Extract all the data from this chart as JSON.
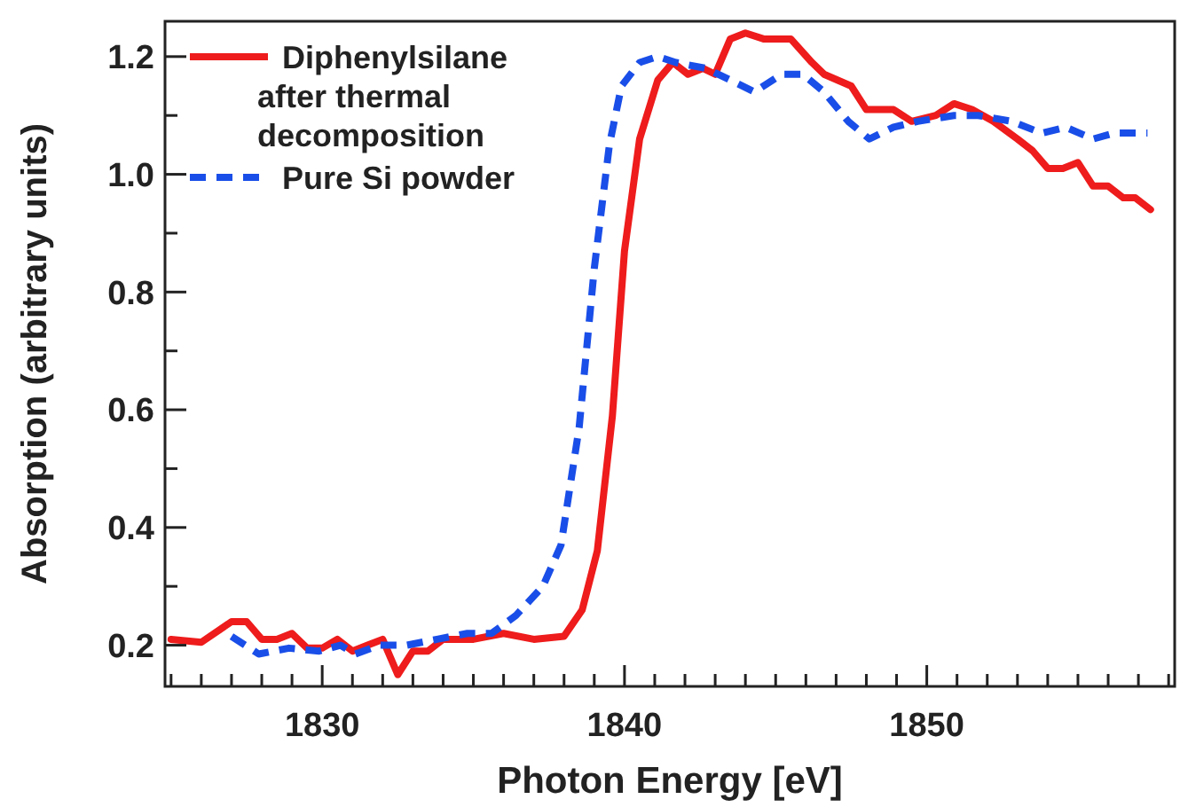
{
  "chart_data": {
    "type": "line",
    "xlabel": "Photon Energy [eV]",
    "ylabel": "Absorption (arbitrary units)",
    "xlim": [
      1824.8,
      1858.2
    ],
    "ylim": [
      0.13,
      1.26
    ],
    "xticks": [
      {
        "value": 1825,
        "label": null
      },
      {
        "value": 1826,
        "label": null
      },
      {
        "value": 1827,
        "label": null
      },
      {
        "value": 1828,
        "label": null
      },
      {
        "value": 1829,
        "label": null
      },
      1830,
      {
        "value": 1831,
        "label": null
      },
      {
        "value": 1832,
        "label": null
      },
      {
        "value": 1833,
        "label": null
      },
      {
        "value": 1834,
        "label": null
      },
      {
        "value": 1835,
        "label": null
      },
      {
        "value": 1836,
        "label": null
      },
      {
        "value": 1837,
        "label": null
      },
      {
        "value": 1838,
        "label": null
      },
      {
        "value": 1839,
        "label": null
      },
      1840,
      {
        "value": 1841,
        "label": null
      },
      {
        "value": 1842,
        "label": null
      },
      {
        "value": 1843,
        "label": null
      },
      {
        "value": 1844,
        "label": null
      },
      {
        "value": 1845,
        "label": null
      },
      {
        "value": 1846,
        "label": null
      },
      {
        "value": 1847,
        "label": null
      },
      {
        "value": 1848,
        "label": null
      },
      {
        "value": 1849,
        "label": null
      },
      1850,
      {
        "value": 1851,
        "label": null
      },
      {
        "value": 1852,
        "label": null
      },
      {
        "value": 1853,
        "label": null
      },
      {
        "value": 1854,
        "label": null
      },
      {
        "value": 1855,
        "label": null
      },
      {
        "value": 1856,
        "label": null
      },
      {
        "value": 1857,
        "label": null
      },
      {
        "value": 1858,
        "label": null
      }
    ],
    "yticks": [
      0.2,
      {
        "value": 0.3,
        "label": null
      },
      0.4,
      {
        "value": 0.5,
        "label": null
      },
      0.6,
      {
        "value": 0.7,
        "label": null
      },
      0.8,
      {
        "value": 0.9,
        "label": null
      },
      {
        "value": 1,
        "label": "1.0"
      },
      {
        "value": 1.1,
        "label": null
      },
      1.2
    ],
    "legend": "top left",
    "grid": false,
    "series": [
      {
        "name": "Diphenylsilane\nafter thermal\ndecomposition",
        "color": "#ee1c1c",
        "line_style": "solid",
        "x": [
          1825.0,
          1826.0,
          1827.0,
          1827.5,
          1828.0,
          1828.5,
          1829.0,
          1829.5,
          1830.0,
          1830.5,
          1831.0,
          1831.5,
          1832.0,
          1832.5,
          1833.0,
          1833.5,
          1834.0,
          1835.0,
          1836.0,
          1837.0,
          1838.0,
          1838.6,
          1839.1,
          1839.6,
          1840.0,
          1840.5,
          1841.1,
          1841.6,
          1842.1,
          1842.6,
          1843.0,
          1843.5,
          1844.0,
          1844.6,
          1845.5,
          1846.2,
          1846.6,
          1847.5,
          1848.0,
          1848.5,
          1848.9,
          1849.5,
          1850.3,
          1850.9,
          1851.5,
          1852.2,
          1853.0,
          1853.5,
          1854.0,
          1854.5,
          1855.0,
          1855.5,
          1856.0,
          1856.5,
          1856.9,
          1857.4
        ],
        "values": [
          0.21,
          0.205,
          0.24,
          0.24,
          0.21,
          0.21,
          0.22,
          0.195,
          0.195,
          0.21,
          0.19,
          0.2,
          0.21,
          0.15,
          0.19,
          0.19,
          0.21,
          0.21,
          0.22,
          0.21,
          0.215,
          0.26,
          0.36,
          0.59,
          0.87,
          1.06,
          1.16,
          1.19,
          1.17,
          1.18,
          1.17,
          1.23,
          1.24,
          1.23,
          1.23,
          1.19,
          1.17,
          1.15,
          1.11,
          1.11,
          1.11,
          1.09,
          1.1,
          1.12,
          1.11,
          1.09,
          1.06,
          1.04,
          1.01,
          1.01,
          1.02,
          0.98,
          0.98,
          0.96,
          0.96,
          0.94
        ]
      },
      {
        "name": "Pure Si powder",
        "color": "#1a4ee8",
        "line_style": "dashed",
        "x": [
          1827.0,
          1827.9,
          1828.9,
          1829.9,
          1830.6,
          1831.1,
          1831.9,
          1832.8,
          1833.8,
          1834.8,
          1835.6,
          1836.4,
          1837.3,
          1837.9,
          1838.5,
          1839.0,
          1839.5,
          1839.9,
          1840.5,
          1841.1,
          1841.7,
          1842.7,
          1843.5,
          1844.3,
          1845.2,
          1845.9,
          1846.6,
          1847.4,
          1848.1,
          1848.9,
          1849.7,
          1850.9,
          1851.7,
          1852.8,
          1853.8,
          1854.6,
          1855.5,
          1856.2,
          1857.3
        ],
        "values": [
          0.215,
          0.185,
          0.195,
          0.19,
          0.2,
          0.185,
          0.2,
          0.2,
          0.21,
          0.22,
          0.22,
          0.25,
          0.3,
          0.37,
          0.57,
          0.84,
          1.05,
          1.15,
          1.19,
          1.2,
          1.19,
          1.18,
          1.16,
          1.14,
          1.17,
          1.17,
          1.14,
          1.09,
          1.06,
          1.08,
          1.09,
          1.1,
          1.1,
          1.09,
          1.07,
          1.08,
          1.06,
          1.07,
          1.07
        ]
      }
    ]
  }
}
